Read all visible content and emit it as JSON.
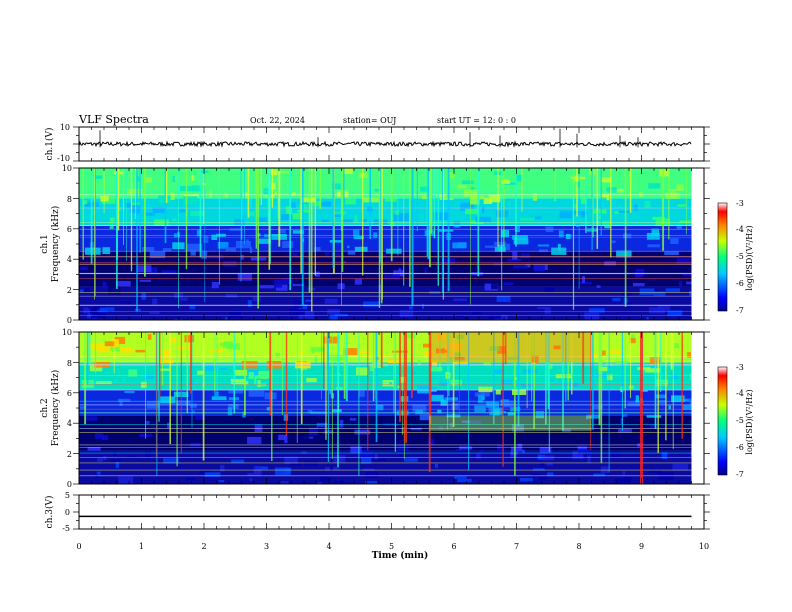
{
  "header": {
    "title": "VLF Spectra",
    "date": "Oct. 22, 2024",
    "station": "station= OUJ",
    "start": "start  UT  =   12: 0   : 0"
  },
  "chart_data": [
    {
      "type": "line",
      "panel": "ch1-waveform",
      "ylabel": "ch.1(V)",
      "ylim": [
        -10,
        10
      ],
      "y_ticks": [
        "10",
        "-10"
      ],
      "x_range": [
        0,
        10
      ],
      "baseline_value": 0,
      "color": "#000000"
    },
    {
      "type": "heatmap",
      "panel": "ch1-spectrogram",
      "ylabel_top": "ch.1",
      "ylabel": "Frequency  (kHz)",
      "ylim": [
        0,
        10
      ],
      "y_ticks": [
        "0",
        "2",
        "4",
        "6",
        "8",
        "10"
      ],
      "x_range": [
        0,
        10
      ],
      "data_end_min": 9.8,
      "colorbar": {
        "label": "log(PSD)(V²/Hz)",
        "range": [
          -7,
          -3
        ],
        "ticks": [
          "-3",
          "-4",
          "-5",
          "-6",
          "-7"
        ]
      }
    },
    {
      "type": "heatmap",
      "panel": "ch2-spectrogram",
      "ylabel_top": "ch.2",
      "ylabel": "Frequency  (kHz)",
      "ylim": [
        0,
        10
      ],
      "y_ticks": [
        "0",
        "2",
        "4",
        "6",
        "8",
        "10"
      ],
      "x_range": [
        0,
        10
      ],
      "data_end_min": 9.8,
      "colorbar": {
        "label": "log(PSD)(V²/Hz)",
        "range": [
          -7,
          -3
        ],
        "ticks": [
          "-3",
          "-4",
          "-5",
          "-6",
          "-7"
        ]
      }
    },
    {
      "type": "line",
      "panel": "ch3-waveform",
      "ylabel": "ch.3(V)",
      "ylim": [
        -5,
        5
      ],
      "y_ticks": [
        "5",
        "0",
        "-5"
      ],
      "x_range": [
        0,
        10
      ],
      "baseline_value": -1.3,
      "color": "#000000"
    }
  ],
  "x_axis": {
    "label": "Time  (min)",
    "ticks": [
      "0",
      "1",
      "2",
      "3",
      "4",
      "5",
      "6",
      "7",
      "8",
      "9",
      "10"
    ]
  }
}
